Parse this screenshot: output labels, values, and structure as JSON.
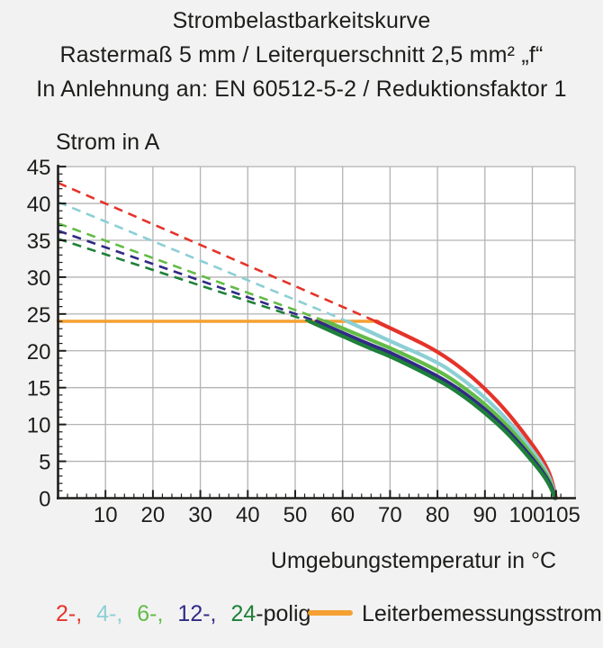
{
  "title": {
    "line1": "Strombelastbarkeitskurve",
    "line2": "Rastermaß 5 mm / Leiterquerschnitt 2,5 mm² „f“",
    "line3": "In Anlehnung an: EN 60512-5-2 / Reduktionsfaktor 1"
  },
  "chart_data": {
    "type": "line",
    "title": "Strombelastbarkeitskurve",
    "ylabel": "Strom in A",
    "xlabel": "Umgebungstemperatur in °C",
    "xlim": [
      0,
      109
    ],
    "ylim": [
      0,
      45
    ],
    "x_major_ticks": [
      10,
      20,
      30,
      40,
      50,
      60,
      70,
      80,
      90,
      100,
      105
    ],
    "x_minor_step": 2,
    "y_major_ticks": [
      0,
      5,
      10,
      15,
      20,
      25,
      30,
      35,
      40,
      45
    ],
    "y_minor_step": 1,
    "grid": true,
    "grid_color": "#b3b3b3",
    "axis_color": "#1d1d1b",
    "plot_background": "#ffffff",
    "reference_line": {
      "label": "Leiterbemessungsstrom",
      "value": 24,
      "x_start": 0,
      "x_end": 67.5,
      "color": "#F5A033"
    },
    "series": [
      {
        "name": "2-polig",
        "color": "#E5332A",
        "dashed": [
          [
            0,
            42.8
          ],
          [
            67,
            24
          ]
        ],
        "solid": [
          [
            67,
            24
          ],
          [
            75,
            21.6
          ],
          [
            80,
            19.9
          ],
          [
            85,
            17.7
          ],
          [
            90,
            14.9
          ],
          [
            95,
            11.5
          ],
          [
            100,
            7.3
          ],
          [
            102.5,
            4.9
          ],
          [
            104,
            2.8
          ],
          [
            105,
            0
          ]
        ]
      },
      {
        "name": "4-polig",
        "color": "#8CCFD5",
        "dashed": [
          [
            0,
            40.2
          ],
          [
            61,
            24
          ]
        ],
        "solid": [
          [
            61,
            24
          ],
          [
            70,
            21.3
          ],
          [
            80,
            18.5
          ],
          [
            85,
            16.3
          ],
          [
            90,
            13.7
          ],
          [
            95,
            10.5
          ],
          [
            100,
            6.5
          ],
          [
            102.5,
            4.2
          ],
          [
            104,
            2.3
          ],
          [
            104.9,
            0
          ]
        ]
      },
      {
        "name": "6-polig",
        "color": "#62BB46",
        "dashed": [
          [
            0,
            37.3
          ],
          [
            56.5,
            24
          ]
        ],
        "solid": [
          [
            56.5,
            24
          ],
          [
            65,
            21.7
          ],
          [
            70,
            20.4
          ],
          [
            80,
            17.4
          ],
          [
            85,
            15.3
          ],
          [
            90,
            12.8
          ],
          [
            95,
            9.7
          ],
          [
            100,
            5.9
          ],
          [
            102.5,
            3.7
          ],
          [
            104,
            1.9
          ],
          [
            104.85,
            0
          ]
        ]
      },
      {
        "name": "12-polig",
        "color": "#312A86",
        "dashed": [
          [
            0,
            36.3
          ],
          [
            54.5,
            24
          ]
        ],
        "solid": [
          [
            54.5,
            24
          ],
          [
            65,
            21.0
          ],
          [
            70,
            19.8
          ],
          [
            80,
            16.6
          ],
          [
            85,
            14.6
          ],
          [
            90,
            12.1
          ],
          [
            95,
            9.1
          ],
          [
            100,
            5.4
          ],
          [
            102.5,
            3.3
          ],
          [
            104,
            1.6
          ],
          [
            104.8,
            0
          ]
        ]
      },
      {
        "name": "24-polig",
        "color": "#1E8039",
        "dashed": [
          [
            0,
            35.2
          ],
          [
            53,
            24
          ]
        ],
        "solid": [
          [
            53,
            24
          ],
          [
            65,
            20.5
          ],
          [
            70,
            19.3
          ],
          [
            80,
            16.1
          ],
          [
            85,
            14.1
          ],
          [
            90,
            11.6
          ],
          [
            95,
            8.7
          ],
          [
            100,
            5.0
          ],
          [
            102.5,
            3.0
          ],
          [
            104,
            1.3
          ],
          [
            104.75,
            0
          ]
        ]
      }
    ]
  },
  "legend": {
    "pole_items": [
      {
        "label": "2-,",
        "color": "#E5332A"
      },
      {
        "label": "4-,",
        "color": "#8CCFD5"
      },
      {
        "label": "6-,",
        "color": "#62BB46"
      },
      {
        "label": "12-,",
        "color": "#312A86"
      },
      {
        "label": "24",
        "color": "#1E8039"
      }
    ],
    "polig_suffix": "-polig",
    "reference_label": "Leiterbemessungsstrom"
  }
}
